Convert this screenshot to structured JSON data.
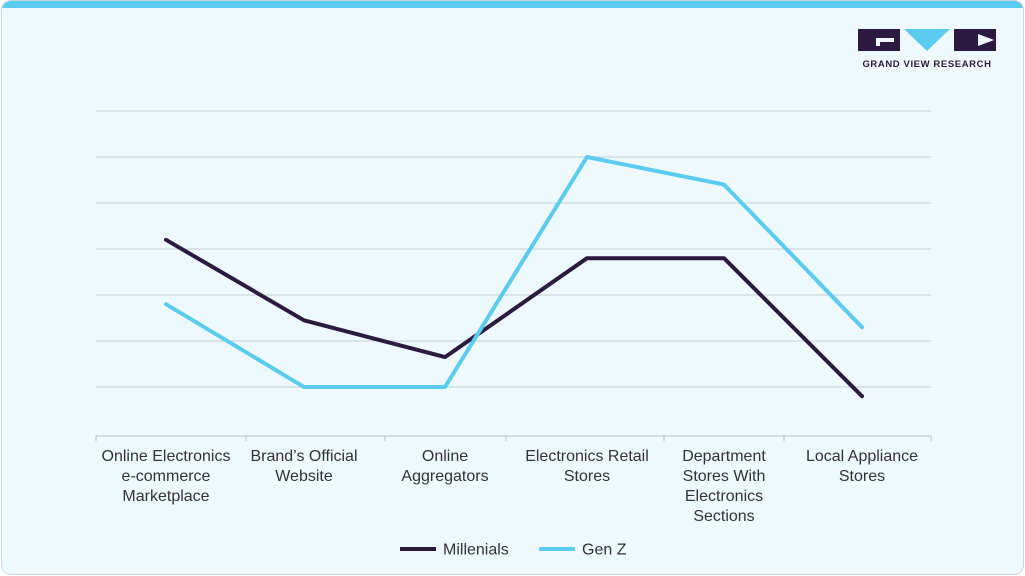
{
  "brand": {
    "name": "GRAND VIEW RESEARCH",
    "colors": {
      "dark": "#2c1a40",
      "light": "#5ccbf0"
    }
  },
  "chart_data": {
    "type": "line",
    "title": "",
    "xlabel": "",
    "ylabel": "",
    "ylim": [
      0,
      7
    ],
    "grid": true,
    "legend": "bottom-center",
    "categories": [
      [
        "Online Electronics",
        "e-commerce",
        "Marketplace"
      ],
      [
        "Brand’s Official",
        "Website"
      ],
      [
        "Online",
        "Aggregators"
      ],
      [
        "Electronics Retail",
        "Stores"
      ],
      [
        "Department",
        "Stores With",
        "Electronics",
        "Sections"
      ],
      [
        "Local Appliance",
        "Stores"
      ]
    ],
    "series": [
      {
        "name": "Millenials",
        "color": "#2c1a40",
        "values": [
          4.2,
          2.45,
          1.65,
          3.8,
          3.8,
          0.8
        ]
      },
      {
        "name": "Gen Z",
        "color": "#5ccbf0",
        "values": [
          2.8,
          1.0,
          1.0,
          6.0,
          5.4,
          2.3
        ]
      }
    ]
  }
}
